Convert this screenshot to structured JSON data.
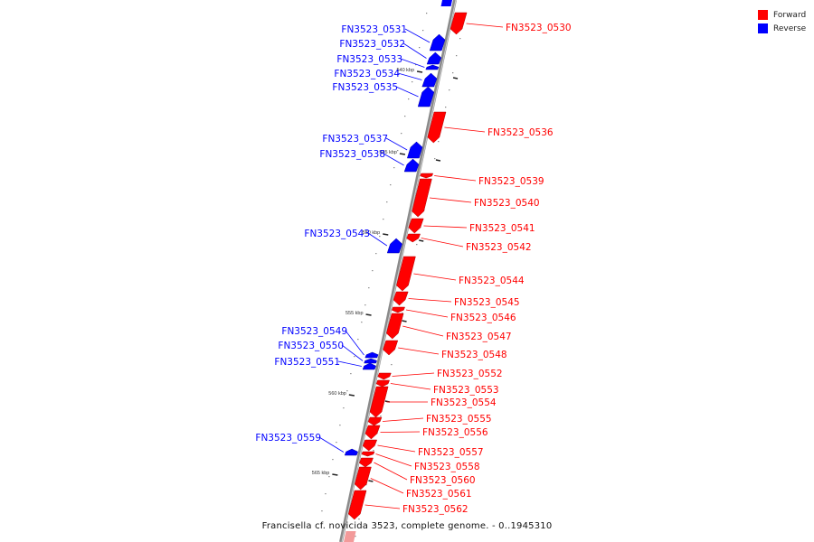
{
  "colors": {
    "forward": "#ff0000",
    "reverse": "#0000ff",
    "axis": "#8a8a8a",
    "tick": "#222222"
  },
  "legend": [
    {
      "label": "Forward",
      "color": "#ff0000"
    },
    {
      "label": "Reverse",
      "color": "#0000ff"
    }
  ],
  "caption": "Francisella cf. novicida 3523, complete genome. - 0..1945310",
  "ticks": [
    "540 kbp",
    "545 kbp",
    "550 kbp",
    "555 kbp",
    "560 kbp",
    "565 kbp"
  ],
  "genes": [
    {
      "label": "FN3523_0530",
      "strand": "forward"
    },
    {
      "label": "FN3523_0531",
      "strand": "reverse"
    },
    {
      "label": "FN3523_0532",
      "strand": "reverse"
    },
    {
      "label": "FN3523_0533",
      "strand": "reverse"
    },
    {
      "label": "FN3523_0534",
      "strand": "reverse"
    },
    {
      "label": "FN3523_0535",
      "strand": "reverse"
    },
    {
      "label": "FN3523_0536",
      "strand": "forward"
    },
    {
      "label": "FN3523_0537",
      "strand": "reverse"
    },
    {
      "label": "FN3523_0538",
      "strand": "reverse"
    },
    {
      "label": "FN3523_0539",
      "strand": "forward"
    },
    {
      "label": "FN3523_0540",
      "strand": "forward"
    },
    {
      "label": "FN3523_0541",
      "strand": "forward"
    },
    {
      "label": "FN3523_0542",
      "strand": "forward"
    },
    {
      "label": "FN3523_0543",
      "strand": "reverse"
    },
    {
      "label": "FN3523_0544",
      "strand": "forward"
    },
    {
      "label": "FN3523_0545",
      "strand": "forward"
    },
    {
      "label": "FN3523_0546",
      "strand": "forward"
    },
    {
      "label": "FN3523_0547",
      "strand": "forward"
    },
    {
      "label": "FN3523_0548",
      "strand": "forward"
    },
    {
      "label": "FN3523_0549",
      "strand": "reverse"
    },
    {
      "label": "FN3523_0550",
      "strand": "reverse"
    },
    {
      "label": "FN3523_0551",
      "strand": "reverse"
    },
    {
      "label": "FN3523_0552",
      "strand": "forward"
    },
    {
      "label": "FN3523_0553",
      "strand": "forward"
    },
    {
      "label": "FN3523_0554",
      "strand": "forward"
    },
    {
      "label": "FN3523_0555",
      "strand": "forward"
    },
    {
      "label": "FN3523_0556",
      "strand": "forward"
    },
    {
      "label": "FN3523_0557",
      "strand": "forward"
    },
    {
      "label": "FN3523_0558",
      "strand": "forward"
    },
    {
      "label": "FN3523_0559",
      "strand": "reverse"
    },
    {
      "label": "FN3523_0560",
      "strand": "forward"
    },
    {
      "label": "FN3523_0561",
      "strand": "forward"
    },
    {
      "label": "FN3523_0562",
      "strand": "forward"
    }
  ]
}
